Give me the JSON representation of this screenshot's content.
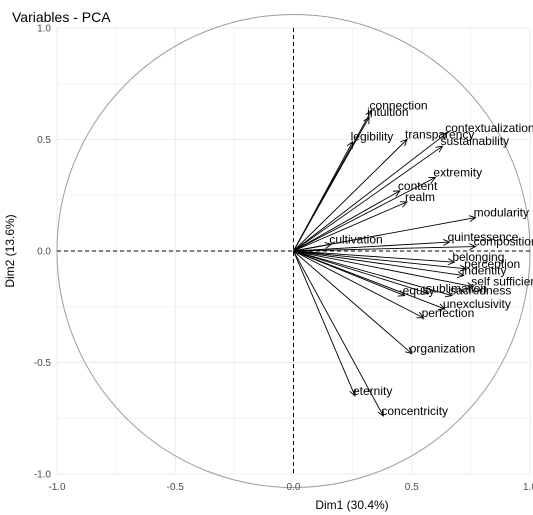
{
  "chart_data": {
    "type": "scatter",
    "subtype": "pca-correlation-circle",
    "title": "Variables - PCA",
    "xlabel": "Dim1 (30.4%)",
    "ylabel": "Dim2 (13.6%)",
    "xlim": [
      -1.0,
      1.0
    ],
    "ylim": [
      -1.0,
      1.0
    ],
    "xticks": [
      "-1.0",
      "-0.5",
      "0.0",
      "0.5",
      "1.0"
    ],
    "yticks": [
      "-1.0",
      "-0.5",
      "0.0",
      "0.5",
      "1.0"
    ],
    "xtick_values": [
      -1.0,
      -0.5,
      0.0,
      0.5,
      1.0
    ],
    "ytick_values": [
      -1.0,
      -0.5,
      0.0,
      0.5,
      1.0
    ],
    "grid": true,
    "unit_circle": true,
    "variables": [
      {
        "name": "connection",
        "x": 0.33,
        "y": 0.63
      },
      {
        "name": "intuition",
        "x": 0.32,
        "y": 0.6
      },
      {
        "name": "legibility",
        "x": 0.25,
        "y": 0.49
      },
      {
        "name": "transparency",
        "x": 0.48,
        "y": 0.5
      },
      {
        "name": "contextualization",
        "x": 0.65,
        "y": 0.53
      },
      {
        "name": "sustainability",
        "x": 0.63,
        "y": 0.47
      },
      {
        "name": "extremity",
        "x": 0.6,
        "y": 0.33
      },
      {
        "name": "content",
        "x": 0.45,
        "y": 0.27
      },
      {
        "name": "realm",
        "x": 0.48,
        "y": 0.22
      },
      {
        "name": "modularity",
        "x": 0.77,
        "y": 0.15
      },
      {
        "name": "cultivation",
        "x": 0.16,
        "y": 0.03
      },
      {
        "name": "quintessence",
        "x": 0.66,
        "y": 0.04
      },
      {
        "name": "composition",
        "x": 0.77,
        "y": 0.02
      },
      {
        "name": "belonging",
        "x": 0.68,
        "y": -0.05
      },
      {
        "name": "perception",
        "x": 0.73,
        "y": -0.08
      },
      {
        "name": "indentity",
        "x": 0.72,
        "y": -0.11
      },
      {
        "name": "self sufficience",
        "x": 0.76,
        "y": -0.16
      },
      {
        "name": "equity",
        "x": 0.47,
        "y": -0.2
      },
      {
        "name": "sublimation",
        "x": 0.57,
        "y": -0.19
      },
      {
        "name": "sacredness",
        "x": 0.67,
        "y": -0.2
      },
      {
        "name": "unexclusivity",
        "x": 0.64,
        "y": -0.26
      },
      {
        "name": "perfection",
        "x": 0.55,
        "y": -0.3
      },
      {
        "name": "organization",
        "x": 0.5,
        "y": -0.46
      },
      {
        "name": "eternity",
        "x": 0.26,
        "y": -0.65
      },
      {
        "name": "concentricity",
        "x": 0.38,
        "y": -0.74
      }
    ]
  }
}
